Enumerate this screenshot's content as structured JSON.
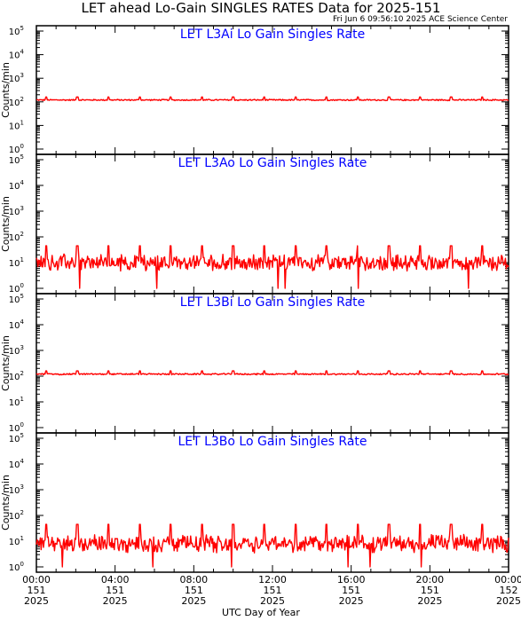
{
  "title": "LET ahead Lo-Gain SINGLES RATES Data for 2025-151",
  "timestamp": "Fri Jun  6 09:56:10 2025 ACE Science Center",
  "x_axis_label": "UTC Day of Year",
  "colors": {
    "series": "#ff0000",
    "panel_title": "#0000ff",
    "axes": "#000000"
  },
  "chart_data": [
    {
      "type": "line",
      "title": "LET L3Ai Lo Gain Singles Rate",
      "ylabel": "Counts/min",
      "yscale": "log",
      "ylim": [
        1,
        100000
      ],
      "yticks": [
        {
          "base": "10",
          "exp": "0"
        },
        {
          "base": "10",
          "exp": "1"
        },
        {
          "base": "10",
          "exp": "2"
        },
        {
          "base": "10",
          "exp": "3"
        },
        {
          "base": "10",
          "exp": "4"
        },
        {
          "base": "10",
          "exp": "5"
        }
      ],
      "xlim": [
        "2025-151 00:00",
        "2025-152 00:00"
      ],
      "baseline": 120,
      "noise_factor": 1.08,
      "spike_value": 160,
      "spike_times": [
        "00:30",
        "02:05",
        "03:40",
        "05:15",
        "06:50",
        "08:25",
        "10:00",
        "11:35",
        "13:10",
        "14:45",
        "16:20",
        "17:55",
        "19:30",
        "21:05",
        "22:40"
      ]
    },
    {
      "type": "line",
      "title": "LET L3Ao Lo Gain Singles Rate",
      "ylabel": "Counts/min",
      "yscale": "log",
      "ylim": [
        1,
        100000
      ],
      "yticks": [
        {
          "base": "10",
          "exp": "0"
        },
        {
          "base": "10",
          "exp": "1"
        },
        {
          "base": "10",
          "exp": "2"
        },
        {
          "base": "10",
          "exp": "3"
        },
        {
          "base": "10",
          "exp": "4"
        },
        {
          "base": "10",
          "exp": "5"
        }
      ],
      "xlim": [
        "2025-151 00:00",
        "2025-152 00:00"
      ],
      "baseline": 10,
      "noise_factor": 2.2,
      "spike_value": 45,
      "spike_times": [
        "00:30",
        "02:05",
        "03:40",
        "05:15",
        "06:50",
        "08:25",
        "10:00",
        "11:35",
        "13:10",
        "14:45",
        "16:20",
        "17:55",
        "19:30",
        "21:05",
        "22:40"
      ]
    },
    {
      "type": "line",
      "title": "LET L3Bi Lo Gain Singles Rate",
      "ylabel": "Counts/min",
      "yscale": "log",
      "ylim": [
        1,
        100000
      ],
      "yticks": [
        {
          "base": "10",
          "exp": "0"
        },
        {
          "base": "10",
          "exp": "1"
        },
        {
          "base": "10",
          "exp": "2"
        },
        {
          "base": "10",
          "exp": "3"
        },
        {
          "base": "10",
          "exp": "4"
        },
        {
          "base": "10",
          "exp": "5"
        }
      ],
      "xlim": [
        "2025-151 00:00",
        "2025-152 00:00"
      ],
      "baseline": 120,
      "noise_factor": 1.08,
      "spike_value": 160,
      "spike_times": [
        "00:30",
        "02:05",
        "03:40",
        "05:15",
        "06:50",
        "08:25",
        "10:00",
        "11:35",
        "13:10",
        "14:45",
        "16:20",
        "17:55",
        "19:30",
        "21:05",
        "22:40"
      ]
    },
    {
      "type": "line",
      "title": "LET L3Bo Lo Gain Singles Rate",
      "ylabel": "Counts/min",
      "yscale": "log",
      "ylim": [
        1,
        100000
      ],
      "yticks": [
        {
          "base": "10",
          "exp": "0"
        },
        {
          "base": "10",
          "exp": "1"
        },
        {
          "base": "10",
          "exp": "2"
        },
        {
          "base": "10",
          "exp": "3"
        },
        {
          "base": "10",
          "exp": "4"
        },
        {
          "base": "10",
          "exp": "5"
        }
      ],
      "xlim": [
        "2025-151 00:00",
        "2025-152 00:00"
      ],
      "baseline": 8,
      "noise_factor": 2.4,
      "spike_value": 45,
      "spike_times": [
        "00:30",
        "02:05",
        "03:40",
        "05:15",
        "06:50",
        "08:25",
        "10:00",
        "11:35",
        "13:10",
        "14:45",
        "16:20",
        "17:55",
        "19:30",
        "21:05",
        "22:40"
      ]
    }
  ],
  "x_ticks": [
    {
      "time": "00:00",
      "doy": "151",
      "year": "2025"
    },
    {
      "time": "04:00",
      "doy": "151",
      "year": "2025"
    },
    {
      "time": "08:00",
      "doy": "151",
      "year": "2025"
    },
    {
      "time": "12:00",
      "doy": "151",
      "year": "2025"
    },
    {
      "time": "16:00",
      "doy": "151",
      "year": "2025"
    },
    {
      "time": "20:00",
      "doy": "151",
      "year": "2025"
    },
    {
      "time": "00:00",
      "doy": "152",
      "year": "2025"
    }
  ]
}
